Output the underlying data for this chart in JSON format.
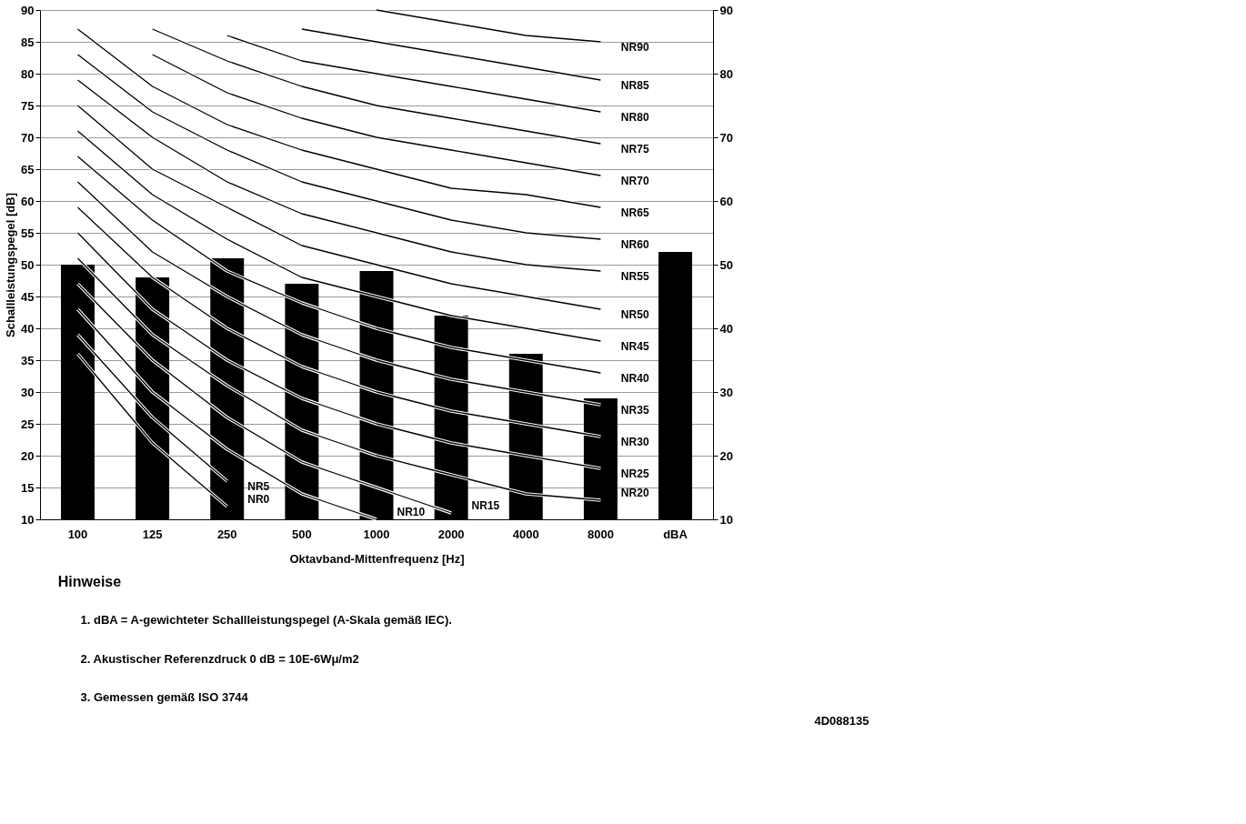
{
  "chart_data": {
    "type": "bar",
    "xlabel": "Oktavband-Mittenfrequenz [Hz]",
    "ylabel": "Schallleistungspegel [dB]",
    "categories": [
      "100",
      "125",
      "250",
      "500",
      "1000",
      "2000",
      "4000",
      "8000",
      "dBA"
    ],
    "series": [
      {
        "type": "bar",
        "color": "#000000",
        "values": [
          50,
          48,
          51,
          47,
          49,
          42,
          36,
          29,
          52
        ]
      },
      {
        "type": "line",
        "name": "NR0",
        "color": "#000000",
        "values": [
          36,
          22,
          12,
          null,
          null,
          null,
          null,
          null,
          null
        ]
      },
      {
        "type": "line",
        "name": "NR5",
        "color": "#000000",
        "values": [
          39,
          26,
          16,
          null,
          null,
          null,
          null,
          null,
          null
        ]
      },
      {
        "type": "line",
        "name": "NR10",
        "color": "#000000",
        "values": [
          43,
          30,
          21,
          14,
          10,
          null,
          null,
          null,
          null
        ]
      },
      {
        "type": "line",
        "name": "NR15",
        "color": "#000000",
        "values": [
          47,
          35,
          26,
          19,
          15,
          11,
          null,
          null,
          null
        ]
      },
      {
        "type": "line",
        "name": "NR20",
        "color": "#000000",
        "values": [
          51,
          39,
          31,
          24,
          20,
          17,
          14,
          13,
          null
        ]
      },
      {
        "type": "line",
        "name": "NR25",
        "color": "#000000",
        "values": [
          55,
          43,
          35,
          29,
          25,
          22,
          20,
          18,
          null
        ]
      },
      {
        "type": "line",
        "name": "NR30",
        "color": "#000000",
        "values": [
          59,
          48,
          40,
          34,
          30,
          27,
          25,
          23,
          null
        ]
      },
      {
        "type": "line",
        "name": "NR35",
        "color": "#000000",
        "values": [
          63,
          52,
          45,
          39,
          35,
          32,
          30,
          28,
          null
        ]
      },
      {
        "type": "line",
        "name": "NR40",
        "color": "#000000",
        "values": [
          67,
          57,
          49,
          44,
          40,
          37,
          35,
          33,
          null
        ]
      },
      {
        "type": "line",
        "name": "NR45",
        "color": "#000000",
        "values": [
          71,
          61,
          54,
          48,
          45,
          42,
          40,
          38,
          null
        ]
      },
      {
        "type": "line",
        "name": "NR50",
        "color": "#000000",
        "values": [
          75,
          65,
          59,
          53,
          50,
          47,
          45,
          43,
          null
        ]
      },
      {
        "type": "line",
        "name": "NR55",
        "color": "#000000",
        "values": [
          79,
          70,
          63,
          58,
          55,
          52,
          50,
          49,
          null
        ]
      },
      {
        "type": "line",
        "name": "NR60",
        "color": "#000000",
        "values": [
          83,
          74,
          68,
          63,
          60,
          57,
          55,
          54,
          null
        ]
      },
      {
        "type": "line",
        "name": "NR65",
        "color": "#000000",
        "values": [
          87,
          78,
          72,
          68,
          65,
          62,
          61,
          59,
          null
        ]
      },
      {
        "type": "line",
        "name": "NR70",
        "color": "#000000",
        "values": [
          null,
          83,
          77,
          73,
          70,
          68,
          66,
          64,
          null
        ]
      },
      {
        "type": "line",
        "name": "NR75",
        "color": "#000000",
        "values": [
          null,
          87,
          82,
          78,
          75,
          73,
          71,
          69,
          null
        ]
      },
      {
        "type": "line",
        "name": "NR80",
        "color": "#000000",
        "values": [
          null,
          null,
          86,
          82,
          80,
          78,
          76,
          74,
          null
        ]
      },
      {
        "type": "line",
        "name": "NR85",
        "color": "#000000",
        "values": [
          null,
          null,
          null,
          87,
          85,
          83,
          81,
          79,
          null
        ]
      },
      {
        "type": "line",
        "name": "NR90",
        "color": "#000000",
        "values": [
          null,
          null,
          null,
          null,
          90,
          88,
          86,
          85,
          null
        ]
      }
    ],
    "ylim": [
      10,
      90
    ],
    "yticks": [
      10,
      15,
      20,
      25,
      30,
      35,
      40,
      45,
      50,
      55,
      60,
      65,
      70,
      75,
      80,
      85,
      90
    ],
    "y2lim": [
      10,
      90
    ],
    "y2ticks": [
      10,
      20,
      30,
      40,
      50,
      60,
      70,
      80,
      90
    ],
    "grid": "y",
    "legend": false,
    "annotations": [
      "Hinweise",
      "1.  dBA = A-gewichteter Schallleistungspegel (A-Skala gemäß IEC).",
      "2.  Akustischer Referenzdruck 0 dB = 10E-6Wμ/m2",
      "3.  Gemessen gemäß ISO 3744",
      "4D088135"
    ]
  }
}
